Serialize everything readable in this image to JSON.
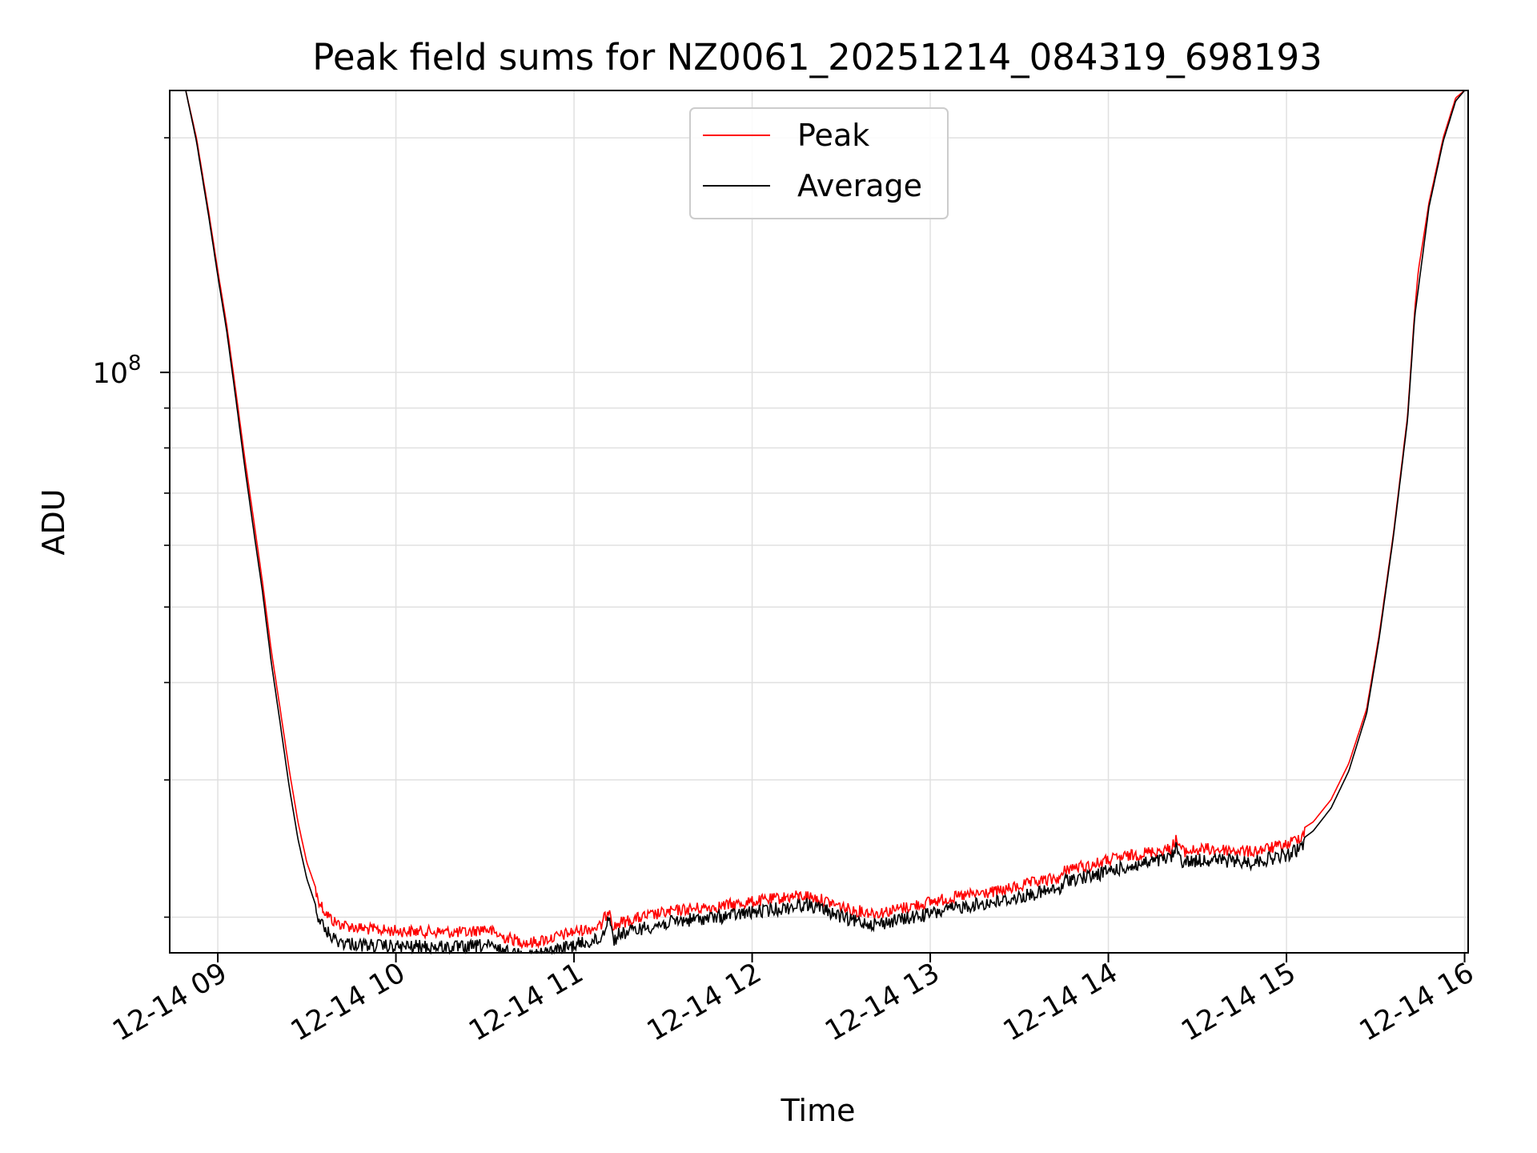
{
  "chart_data": {
    "type": "line",
    "title": "Peak field sums for NZ0061_20251214_084319_698193",
    "xlabel": "Time",
    "ylabel": "ADU",
    "yscale": "log",
    "ylim": [
      18000000,
      230000000
    ],
    "xlim": [
      8.73,
      16.02
    ],
    "x_unit": "hour of day 2025-12-14",
    "xticks": [
      {
        "value": 9,
        "label": "12-14 09"
      },
      {
        "value": 10,
        "label": "12-14 10"
      },
      {
        "value": 11,
        "label": "12-14 11"
      },
      {
        "value": 12,
        "label": "12-14 12"
      },
      {
        "value": 13,
        "label": "12-14 13"
      },
      {
        "value": 14,
        "label": "12-14 14"
      },
      {
        "value": 15,
        "label": "12-14 15"
      },
      {
        "value": 16,
        "label": "12-14 16"
      }
    ],
    "yticks": [
      {
        "value": 100000000,
        "base": "10",
        "exp": "8"
      }
    ],
    "yminor": [
      20000000,
      30000000,
      40000000,
      50000000,
      60000000,
      70000000,
      80000000,
      90000000,
      200000000
    ],
    "grid": true,
    "legend_position": "top-center",
    "series": [
      {
        "name": "Peak",
        "color": "#ff0000",
        "x": [
          8.82,
          8.88,
          8.95,
          9.0,
          9.05,
          9.1,
          9.15,
          9.2,
          9.25,
          9.3,
          9.35,
          9.4,
          9.45,
          9.5,
          9.55,
          9.6,
          9.65,
          9.7,
          9.8,
          9.9,
          10.0,
          10.2,
          10.4,
          10.5,
          10.6,
          10.75,
          10.9,
          11.0,
          11.15,
          11.2,
          11.22,
          11.25,
          11.4,
          11.6,
          11.8,
          12.0,
          12.2,
          12.3,
          12.4,
          12.55,
          12.7,
          12.8,
          13.0,
          13.2,
          13.4,
          13.6,
          13.74,
          13.76,
          13.9,
          14.0,
          14.2,
          14.35,
          14.38,
          14.42,
          14.55,
          14.7,
          14.8,
          15.0,
          15.05,
          15.15,
          15.25,
          15.35,
          15.45,
          15.52,
          15.6,
          15.68,
          15.72,
          15.74,
          15.8,
          15.88,
          15.95,
          16.0
        ],
        "y": [
          230000000,
          200000000,
          160000000,
          135000000,
          115000000,
          95000000,
          78000000,
          65000000,
          54000000,
          44000000,
          37000000,
          31000000,
          26500000,
          23500000,
          21800000,
          20700000,
          20100000,
          19900000,
          19700000,
          19600000,
          19550000,
          19500000,
          19450000,
          19700000,
          19200000,
          18850000,
          19200000,
          19500000,
          19800000,
          21000000,
          19700000,
          20000000,
          20400000,
          20800000,
          21000000,
          21300000,
          21600000,
          21700000,
          21400000,
          20800000,
          20600000,
          20800000,
          21300000,
          21700000,
          22000000,
          22600000,
          22900000,
          23500000,
          23700000,
          24100000,
          24600000,
          24900000,
          25600000,
          24700000,
          24900000,
          24800000,
          24700000,
          25200000,
          25600000,
          26500000,
          28300000,
          31500000,
          37000000,
          46000000,
          62000000,
          88000000,
          120000000,
          135000000,
          165000000,
          200000000,
          225000000,
          230000000
        ]
      },
      {
        "name": "Average",
        "color": "#000000",
        "x": [
          8.82,
          8.88,
          8.95,
          9.0,
          9.05,
          9.1,
          9.15,
          9.2,
          9.25,
          9.3,
          9.35,
          9.4,
          9.45,
          9.5,
          9.55,
          9.6,
          9.65,
          9.7,
          9.8,
          9.9,
          10.0,
          10.2,
          10.4,
          10.5,
          10.6,
          10.75,
          10.9,
          11.0,
          11.15,
          11.2,
          11.22,
          11.25,
          11.4,
          11.6,
          11.8,
          12.0,
          12.2,
          12.3,
          12.4,
          12.55,
          12.7,
          12.8,
          13.0,
          13.2,
          13.4,
          13.6,
          13.74,
          13.76,
          13.9,
          14.0,
          14.2,
          14.35,
          14.38,
          14.42,
          14.55,
          14.7,
          14.8,
          15.0,
          15.05,
          15.15,
          15.25,
          15.35,
          15.45,
          15.52,
          15.6,
          15.68,
          15.72,
          15.74,
          15.8,
          15.88,
          15.95,
          16.0
        ],
        "y": [
          230000000,
          198000000,
          158000000,
          133000000,
          113000000,
          93000000,
          76000000,
          63000000,
          52500000,
          42500000,
          35500000,
          29500000,
          25200000,
          22400000,
          20700000,
          19700000,
          19150000,
          18950000,
          18800000,
          18750000,
          18700000,
          18700000,
          18650000,
          18800000,
          18450000,
          18200000,
          18500000,
          18800000,
          19100000,
          20600000,
          19000000,
          19400000,
          19800000,
          20200000,
          20400000,
          20700000,
          21000000,
          21200000,
          20900000,
          20200000,
          20000000,
          20200000,
          20600000,
          21100000,
          21400000,
          21900000,
          22200000,
          22800000,
          23000000,
          23400000,
          23900000,
          24300000,
          25000000,
          24000000,
          24200000,
          24100000,
          24000000,
          24500000,
          24800000,
          25800000,
          27600000,
          30800000,
          36500000,
          45500000,
          61500000,
          87000000,
          118000000,
          128000000,
          163000000,
          198000000,
          223000000,
          230000000
        ]
      }
    ]
  }
}
